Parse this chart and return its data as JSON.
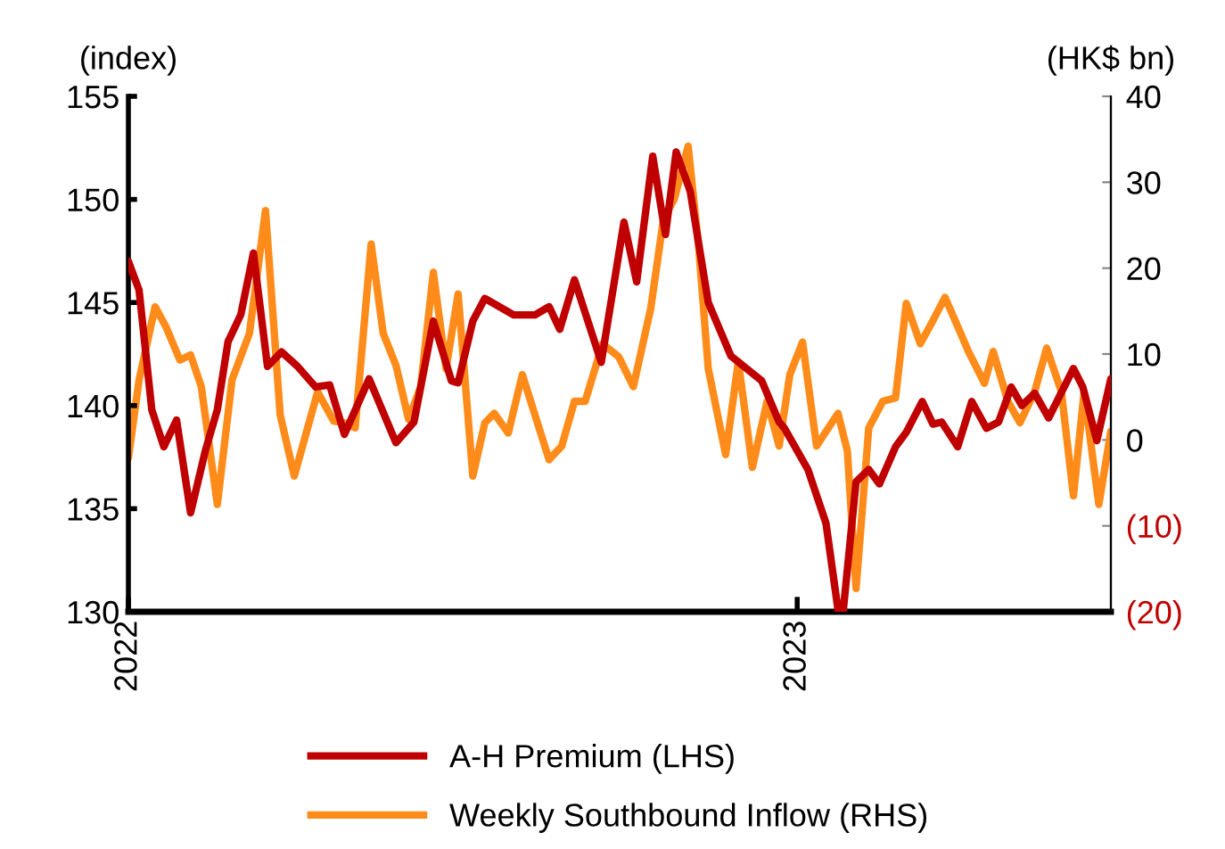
{
  "chart_data": {
    "type": "line",
    "ylabel": "(index)",
    "y2label": "(HK$ bn)",
    "series": [
      {
        "name": "A-H Premium (LHS)",
        "color": "#c00000",
        "axis": "y",
        "x": [
          2022.0,
          2022.016,
          2022.035,
          2022.053,
          2022.072,
          2022.093,
          2022.115,
          2022.133,
          2022.149,
          2022.168,
          2022.187,
          2022.208,
          2022.229,
          2022.253,
          2022.28,
          2022.301,
          2022.323,
          2022.36,
          2022.4,
          2022.427,
          2022.456,
          2022.483,
          2022.493,
          2022.515,
          2022.533,
          2022.576,
          2022.608,
          2022.629,
          2022.645,
          2022.667,
          2022.707,
          2022.741,
          2022.76,
          2022.784,
          2022.803,
          2022.819,
          2022.84,
          2022.867,
          2022.901,
          2022.947,
          2022.973,
          2022.981,
          2023.016,
          2023.043,
          2023.061,
          2023.069,
          2023.088,
          2023.107,
          2023.123,
          2023.147,
          2023.163,
          2023.187,
          2023.203,
          2023.216,
          2023.24,
          2023.261,
          2023.283,
          2023.301,
          2023.32,
          2023.336,
          2023.355,
          2023.376,
          2023.413,
          2023.427,
          2023.448,
          2023.469
        ],
        "values": [
          147.0,
          145.6,
          139.8,
          138.0,
          139.3,
          134.8,
          137.8,
          139.8,
          143.1,
          144.4,
          147.4,
          141.9,
          142.6,
          141.9,
          140.9,
          141.0,
          138.6,
          141.3,
          138.2,
          139.2,
          144.1,
          141.2,
          141.1,
          144.1,
          145.2,
          144.4,
          144.4,
          144.8,
          143.7,
          146.1,
          142.1,
          148.9,
          146.0,
          152.1,
          148.3,
          152.3,
          150.4,
          145.0,
          142.4,
          141.2,
          139.2,
          138.9,
          136.9,
          134.3,
          130.1,
          130.1,
          136.3,
          136.9,
          136.2,
          138.0,
          138.7,
          140.2,
          139.1,
          139.2,
          138.0,
          140.2,
          138.9,
          139.2,
          140.9,
          140.0,
          140.6,
          139.4,
          141.8,
          140.9,
          138.3,
          141.3
        ]
      },
      {
        "name": "Weekly Southbound Inflow (RHS)",
        "color": "#ff8c1a",
        "axis": "y2",
        "x": [
          2022.0,
          2022.016,
          2022.04,
          2022.056,
          2022.077,
          2022.093,
          2022.109,
          2022.133,
          2022.155,
          2022.181,
          2022.205,
          2022.227,
          2022.248,
          2022.283,
          2022.307,
          2022.323,
          2022.339,
          2022.363,
          2022.381,
          2022.4,
          2022.419,
          2022.437,
          2022.456,
          2022.475,
          2022.493,
          2022.515,
          2022.533,
          2022.547,
          2022.568,
          2022.589,
          2022.608,
          2022.629,
          2022.648,
          2022.667,
          2022.683,
          2022.709,
          2022.733,
          2022.755,
          2022.781,
          2022.8,
          2022.816,
          2022.837,
          2022.853,
          2022.867,
          2022.893,
          2022.912,
          2022.933,
          2022.955,
          2022.973,
          2022.989,
          2023.008,
          2023.029,
          2023.061,
          2023.075,
          2023.088,
          2023.107,
          2023.128,
          2023.147,
          2023.163,
          2023.184,
          2023.203,
          2023.221,
          2023.24,
          2023.256,
          2023.28,
          2023.293,
          2023.315,
          2023.333,
          2023.355,
          2023.373,
          2023.395,
          2023.413,
          2023.429,
          2023.451,
          2023.469
        ],
        "values": [
          -2.1,
          7.0,
          15.5,
          13.2,
          9.3,
          9.9,
          6.2,
          -7.5,
          7.0,
          12.4,
          26.7,
          2.9,
          -4.2,
          5.6,
          2.2,
          2.0,
          1.4,
          22.8,
          12.4,
          8.7,
          2.4,
          6.2,
          19.5,
          8.3,
          17.0,
          -4.2,
          2.0,
          3.1,
          0.8,
          7.6,
          2.9,
          -2.3,
          -0.7,
          4.5,
          4.5,
          11.2,
          9.7,
          6.2,
          15.3,
          25.7,
          28.0,
          34.2,
          22.2,
          8.3,
          -1.7,
          9.1,
          -3.2,
          4.5,
          -0.7,
          7.6,
          11.4,
          -0.7,
          3.1,
          -1.3,
          -17.3,
          1.4,
          4.5,
          4.9,
          15.9,
          11.2,
          13.9,
          16.6,
          13.2,
          10.3,
          6.6,
          10.3,
          4.5,
          2.0,
          5.6,
          10.7,
          5.6,
          -6.5,
          5.6,
          -7.5,
          1.0
        ]
      }
    ],
    "xlim": [
      2022.0,
      2023.469
    ],
    "xticks": [
      2022,
      2023
    ],
    "ylim": [
      130,
      155
    ],
    "yticks": [
      130,
      135,
      140,
      145,
      150,
      155
    ],
    "y2lim": [
      -20,
      40
    ],
    "y2ticks": [
      {
        "value": -20,
        "label": "(20)"
      },
      {
        "value": -10,
        "label": "(10)"
      },
      0,
      10,
      20,
      30,
      40
    ],
    "grid": false,
    "legend": "bottom",
    "marker": "none",
    "line_style": "solid"
  }
}
